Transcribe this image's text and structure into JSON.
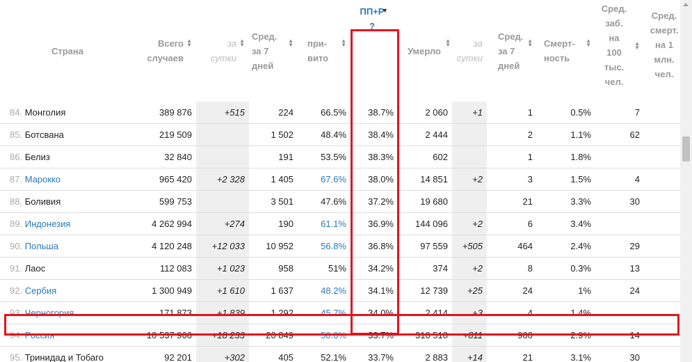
{
  "headers": {
    "country": "Страна",
    "total": [
      "Всего",
      "случаев"
    ],
    "day": [
      "за",
      "сутки"
    ],
    "avg7": [
      "Сред.",
      "за 7",
      "дней"
    ],
    "vacc": [
      "при-",
      "вито"
    ],
    "ppr": [
      "ПП+Р",
      "?"
    ],
    "deaths": "Умерло",
    "deaths_day": [
      "за",
      "сутки"
    ],
    "deaths_avg7": [
      "Сред.",
      "за 7",
      "дней"
    ],
    "mortality": [
      "Смерт-",
      "ность"
    ],
    "per100k": [
      "Сред.",
      "заб.",
      "на",
      "100",
      "тыс.",
      "чел."
    ],
    "per1m": [
      "Сред.",
      "смерт.",
      "на 1",
      "млн.",
      "чел."
    ]
  },
  "rows": [
    {
      "idx": "84.",
      "name": "Монголия",
      "link": false,
      "total": "389 876",
      "day": "+515",
      "avg7": "224",
      "vacc": "66.5%",
      "vacc_link": false,
      "ppr": "38.7%",
      "deaths": "2 060",
      "deaths_day": "+1",
      "deaths_avg7": "1",
      "mortality": "0.5%",
      "per100k": "7"
    },
    {
      "idx": "85.",
      "name": "Ботсвана",
      "link": false,
      "total": "219 509",
      "day": "",
      "avg7": "1 502",
      "vacc": "48.4%",
      "vacc_link": false,
      "ppr": "38.4%",
      "deaths": "2 444",
      "deaths_day": "",
      "deaths_avg7": "2",
      "mortality": "1.1%",
      "per100k": "62"
    },
    {
      "idx": "86.",
      "name": "Белиз",
      "link": false,
      "total": "32 840",
      "day": "",
      "avg7": "191",
      "vacc": "53.5%",
      "vacc_link": false,
      "ppr": "38.3%",
      "deaths": "602",
      "deaths_day": "",
      "deaths_avg7": "1",
      "mortality": "1.8%",
      "per100k": ""
    },
    {
      "idx": "87.",
      "name": "Марокко",
      "link": true,
      "total": "965 420",
      "day": "+2 328",
      "avg7": "1 405",
      "vacc": "67.6%",
      "vacc_link": true,
      "ppr": "38.0%",
      "deaths": "14 851",
      "deaths_day": "+2",
      "deaths_avg7": "3",
      "mortality": "1.5%",
      "per100k": "4"
    },
    {
      "idx": "88.",
      "name": "Боливия",
      "link": false,
      "total": "599 753",
      "day": "",
      "avg7": "3 501",
      "vacc": "47.6%",
      "vacc_link": false,
      "ppr": "37.2%",
      "deaths": "19 680",
      "deaths_day": "",
      "deaths_avg7": "21",
      "mortality": "3.3%",
      "per100k": "30"
    },
    {
      "idx": "89.",
      "name": "Индонезия",
      "link": true,
      "total": "4 262 994",
      "day": "+274",
      "avg7": "190",
      "vacc": "61.1%",
      "vacc_link": true,
      "ppr": "36.9%",
      "deaths": "144 096",
      "deaths_day": "+2",
      "deaths_avg7": "6",
      "mortality": "3.4%",
      "per100k": ""
    },
    {
      "idx": "90.",
      "name": "Польша",
      "link": true,
      "total": "4 120 248",
      "day": "+12 033",
      "avg7": "10 952",
      "vacc": "56.8%",
      "vacc_link": true,
      "ppr": "36.8%",
      "deaths": "97 559",
      "deaths_day": "+505",
      "deaths_avg7": "464",
      "mortality": "2.4%",
      "per100k": "29"
    },
    {
      "idx": "91.",
      "name": "Лаос",
      "link": false,
      "total": "112 083",
      "day": "+1 023",
      "avg7": "958",
      "vacc": "51%",
      "vacc_link": false,
      "ppr": "34.2%",
      "deaths": "374",
      "deaths_day": "+2",
      "deaths_avg7": "8",
      "mortality": "0.3%",
      "per100k": "13"
    },
    {
      "idx": "92.",
      "name": "Сербия",
      "link": true,
      "total": "1 300 949",
      "day": "+1 610",
      "avg7": "1 637",
      "vacc": "48.2%",
      "vacc_link": true,
      "ppr": "34.1%",
      "deaths": "12 739",
      "deaths_day": "+25",
      "deaths_avg7": "24",
      "mortality": "1%",
      "per100k": "24"
    },
    {
      "idx": "93.",
      "name": "Черногория",
      "link": true,
      "total": "171 873",
      "day": "+1 839",
      "avg7": "1 292",
      "vacc": "45.7%",
      "vacc_link": true,
      "ppr": "34.0%",
      "deaths": "2 414",
      "deaths_day": "+3",
      "deaths_avg7": "4",
      "mortality": "1.4%",
      "per100k": ""
    },
    {
      "idx": "94.",
      "name": "Россия",
      "link": true,
      "total": "10 537 966",
      "day": "+18 233",
      "avg7": "20 849",
      "vacc": "50.6%",
      "vacc_link": true,
      "ppr": "33.7%",
      "deaths": "310 518",
      "deaths_day": "+811",
      "deaths_avg7": "900",
      "mortality": "2.9%",
      "per100k": "14"
    },
    {
      "idx": "95.",
      "name": "Тринидад и Тобаго",
      "link": false,
      "total": "92 201",
      "day": "+302",
      "avg7": "405",
      "vacc": "52.1%",
      "vacc_link": false,
      "ppr": "33.7%",
      "deaths": "2 883",
      "deaths_day": "+14",
      "deaths_avg7": "21",
      "mortality": "3.1%",
      "per100k": "30"
    }
  ],
  "colors": {
    "link": "#2a7ab8",
    "highlight": "#e1141e",
    "day_bg": "#efefef"
  }
}
